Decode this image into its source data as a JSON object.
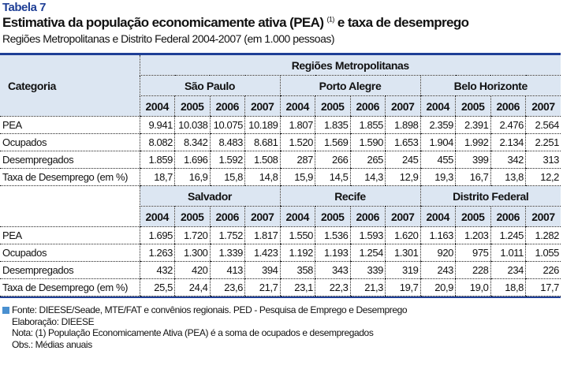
{
  "header": {
    "label": "Tabela 7",
    "title": "Estimativa da população economicamente ativa (PEA)",
    "title_note": "(1)",
    "title_end": "e taxa de desemprego",
    "subtitle": "Regiões Metropolitanas e Distrito Federal 2004-2007 (em 1.000 pessoas)"
  },
  "table": {
    "category_header": "Categoria",
    "group_header": "Regiões Metropolitanas",
    "years": [
      "2004",
      "2005",
      "2006",
      "2007"
    ],
    "row_labels": [
      "PEA",
      "Ocupados",
      "Desempregados",
      "Taxa de Desemprego (em %)"
    ],
    "blocks": [
      {
        "regions": [
          "São Paulo",
          "Porto Alegre",
          "Belo Horizonte"
        ],
        "rows": [
          [
            "9.941",
            "10.038",
            "10.075",
            "10.189",
            "1.807",
            "1.835",
            "1.855",
            "1.898",
            "2.359",
            "2.391",
            "2.476",
            "2.564"
          ],
          [
            "8.082",
            "8.342",
            "8.483",
            "8.681",
            "1.520",
            "1.569",
            "1.590",
            "1.653",
            "1.904",
            "1.992",
            "2.134",
            "2.251"
          ],
          [
            "1.859",
            "1.696",
            "1.592",
            "1.508",
            "287",
            "266",
            "265",
            "245",
            "455",
            "399",
            "342",
            "313"
          ],
          [
            "18,7",
            "16,9",
            "15,8",
            "14,8",
            "15,9",
            "14,5",
            "14,3",
            "12,9",
            "19,3",
            "16,7",
            "13,8",
            "12,2"
          ]
        ]
      },
      {
        "regions": [
          "Salvador",
          "Recife",
          "Distrito Federal"
        ],
        "rows": [
          [
            "1.695",
            "1.720",
            "1.752",
            "1.817",
            "1.550",
            "1.536",
            "1.593",
            "1.620",
            "1.163",
            "1.203",
            "1.245",
            "1.282"
          ],
          [
            "1.263",
            "1.300",
            "1.339",
            "1.423",
            "1.192",
            "1.193",
            "1.254",
            "1.301",
            "920",
            "975",
            "1.011",
            "1.055"
          ],
          [
            "432",
            "420",
            "413",
            "394",
            "358",
            "343",
            "339",
            "319",
            "243",
            "228",
            "234",
            "226"
          ],
          [
            "25,5",
            "24,4",
            "23,6",
            "21,7",
            "23,1",
            "22,3",
            "21,3",
            "19,7",
            "20,9",
            "19,0",
            "18,8",
            "17,7"
          ]
        ]
      }
    ]
  },
  "footer": {
    "source": "Fonte: DIEESE/Seade, MTE/FAT e convênios regionais. PED - Pesquisa de Emprego e Desemprego",
    "elaboration": "Elaboração: DIEESE",
    "note": "Nota: (1) População Economicamente Ativa (PEA) é a soma de ocupados e desempregados",
    "obs": "Obs.: Médias anuais"
  },
  "colors": {
    "accent": "#1f3f96",
    "header_bg": "#dce6f2",
    "bullet": "#4a90d0"
  }
}
